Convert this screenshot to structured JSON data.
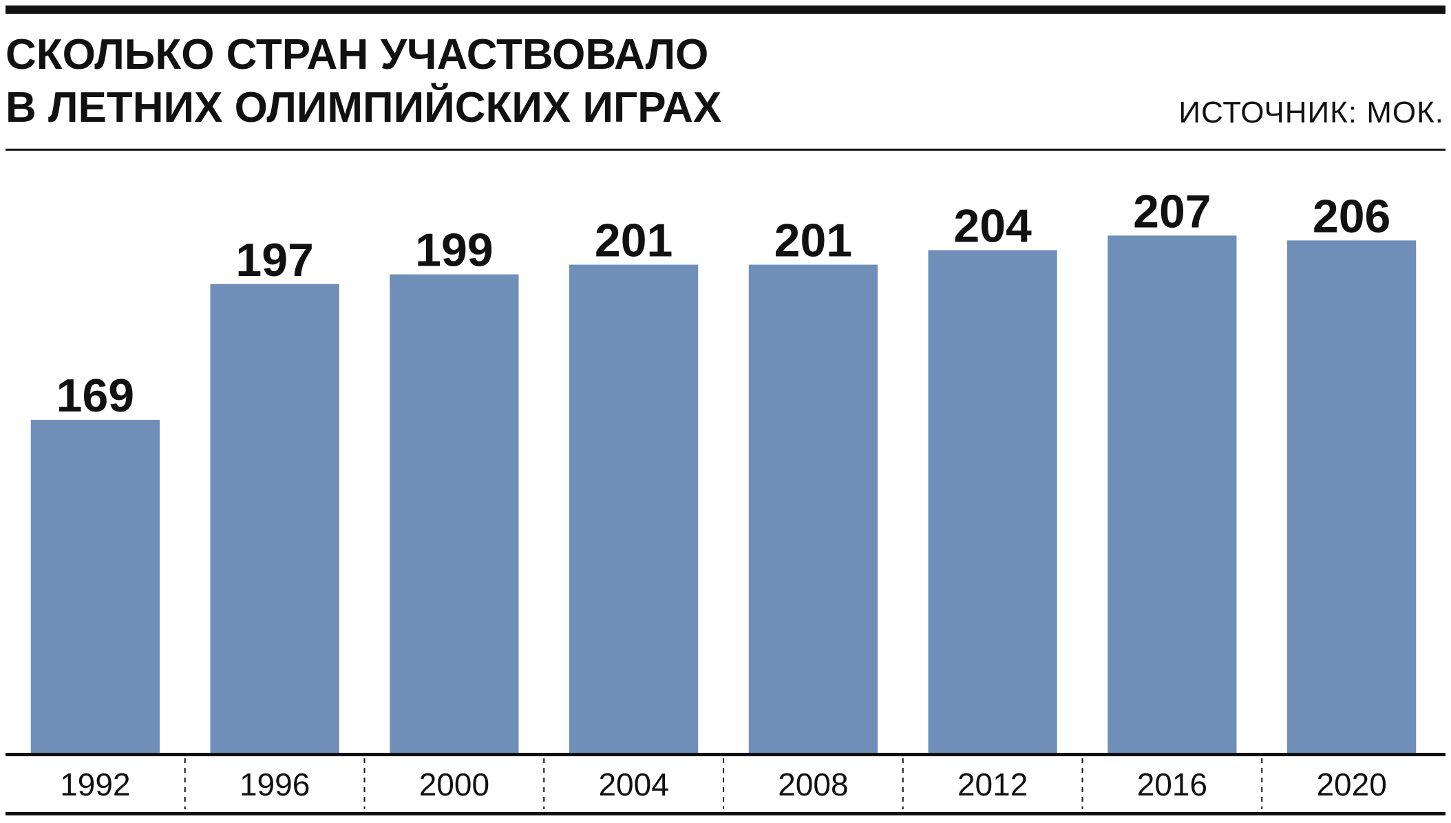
{
  "chart_data": {
    "type": "bar",
    "title_lines": [
      "СКОЛЬКО СТРАН УЧАСТВОВАЛО",
      "В ЛЕТНИХ ОЛИМПИЙСКИХ ИГРАХ"
    ],
    "source": "ИСТОЧНИК: МОК.",
    "categories": [
      "1992",
      "1996",
      "2000",
      "2004",
      "2008",
      "2012",
      "2016",
      "2020"
    ],
    "values": [
      169,
      197,
      199,
      201,
      201,
      204,
      207,
      206
    ],
    "color": "#6f8fb8",
    "ylim": [
      100,
      215
    ],
    "grid": false
  }
}
